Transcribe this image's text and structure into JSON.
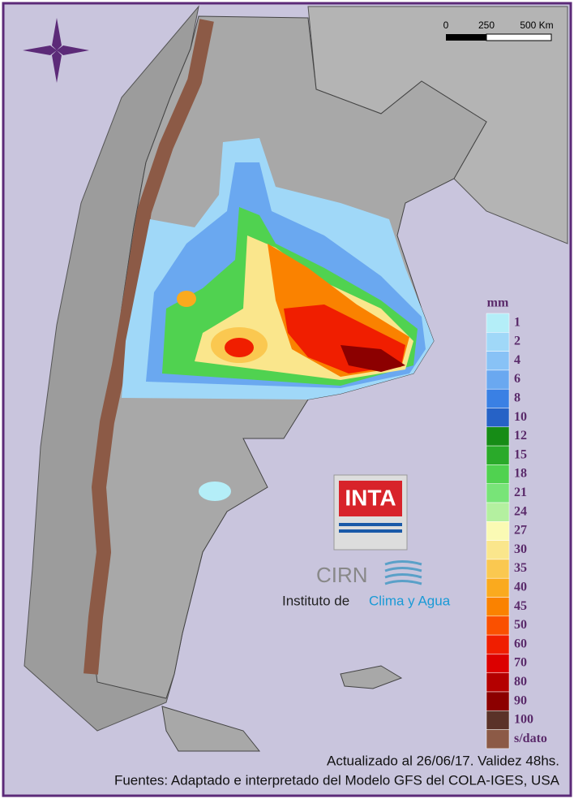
{
  "scale_bar": {
    "labels": [
      "0",
      "250",
      "500 Km"
    ]
  },
  "legend": {
    "title": "mm",
    "items": [
      {
        "label": 1,
        "color": "#b4eef8"
      },
      {
        "label": 2,
        "color": "#a0d8f8"
      },
      {
        "label": 4,
        "color": "#88c2f6"
      },
      {
        "label": 6,
        "color": "#6aa8f0"
      },
      {
        "label": 8,
        "color": "#3a80e4"
      },
      {
        "label": 10,
        "color": "#2662c6"
      },
      {
        "label": 12,
        "color": "#168c16"
      },
      {
        "label": 15,
        "color": "#2aaa2a"
      },
      {
        "label": 18,
        "color": "#50d250"
      },
      {
        "label": 21,
        "color": "#78e478"
      },
      {
        "label": 24,
        "color": "#b4f0a0"
      },
      {
        "label": 27,
        "color": "#fafab4"
      },
      {
        "label": 30,
        "color": "#fae68c"
      },
      {
        "label": 35,
        "color": "#fac850"
      },
      {
        "label": 40,
        "color": "#faaa1e"
      },
      {
        "label": 45,
        "color": "#fa8200"
      },
      {
        "label": 50,
        "color": "#fa5000"
      },
      {
        "label": 60,
        "color": "#f01e00"
      },
      {
        "label": 70,
        "color": "#dc0000"
      },
      {
        "label": 80,
        "color": "#b40000"
      },
      {
        "label": 90,
        "color": "#8c0000"
      },
      {
        "label": 100,
        "color": "#5a3228"
      },
      {
        "label": "s/dato",
        "color": "#8c5a46"
      }
    ]
  },
  "logo": {
    "inta": "INTA",
    "cirn": "CIRN",
    "institute": "Instituto de",
    "institute_highlight": "Clima y Agua"
  },
  "footer": {
    "updated": "Actualizado al 26/06/17. Validez 48hs.",
    "sources": "Fuentes: Adaptado e interpretado del Modelo GFS del COLA-IGES, USA"
  }
}
